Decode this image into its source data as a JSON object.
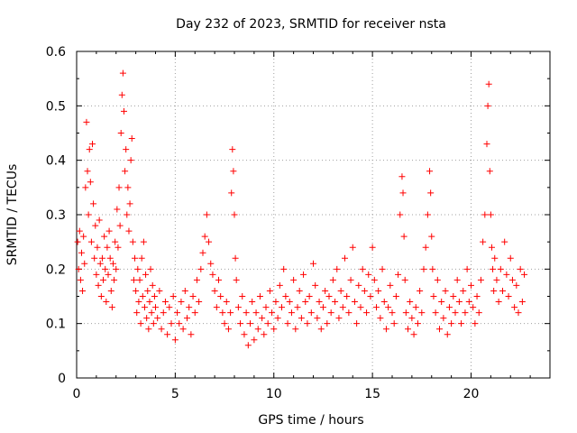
{
  "chart_data": {
    "type": "scatter",
    "title": "Day 232 of 2023, SRMTID for receiver nsta",
    "xlabel": "GPS time / hours",
    "ylabel": "SRMTID / TECUs",
    "xlim": [
      0,
      24
    ],
    "ylim": [
      0,
      0.6
    ],
    "xticks": [
      0,
      5,
      10,
      15,
      20
    ],
    "xtick_labels": [
      "0",
      "5",
      "10",
      "15",
      "20"
    ],
    "yticks": [
      0,
      0.1,
      0.2,
      0.3,
      0.4,
      0.5,
      0.6
    ],
    "ytick_labels": [
      "0",
      "0.1",
      "0.2",
      "0.3",
      "0.4",
      "0.5",
      "0.6"
    ],
    "grid": true,
    "marker": "plus",
    "marker_color": "#ff0000",
    "series": [
      {
        "name": "SRMTID",
        "x": [
          0.05,
          0.1,
          0.15,
          0.2,
          0.25,
          0.3,
          0.35,
          0.4,
          0.45,
          0.5,
          0.55,
          0.6,
          0.65,
          0.7,
          0.75,
          0.8,
          0.85,
          0.9,
          0.95,
          1.0,
          1.05,
          1.1,
          1.15,
          1.2,
          1.25,
          1.3,
          1.35,
          1.4,
          1.45,
          1.5,
          1.55,
          1.6,
          1.65,
          1.7,
          1.75,
          1.8,
          1.85,
          1.9,
          1.95,
          2.0,
          2.05,
          2.1,
          2.15,
          2.2,
          2.25,
          2.3,
          2.35,
          2.4,
          2.45,
          2.5,
          2.55,
          2.6,
          2.65,
          2.7,
          2.75,
          2.8,
          2.85,
          2.9,
          2.95,
          3.0,
          3.05,
          3.1,
          3.15,
          3.2,
          3.25,
          3.3,
          3.35,
          3.4,
          3.45,
          3.5,
          3.55,
          3.6,
          3.65,
          3.7,
          3.75,
          3.8,
          3.85,
          3.9,
          3.95,
          4.0,
          4.1,
          4.2,
          4.3,
          4.4,
          4.5,
          4.6,
          4.7,
          4.8,
          4.9,
          5.0,
          5.1,
          5.2,
          5.3,
          5.4,
          5.5,
          5.6,
          5.7,
          5.8,
          5.9,
          6.0,
          6.1,
          6.2,
          6.3,
          6.4,
          6.5,
          6.6,
          6.7,
          6.8,
          6.9,
          7.0,
          7.1,
          7.2,
          7.3,
          7.4,
          7.5,
          7.6,
          7.7,
          7.8,
          7.85,
          7.9,
          7.95,
          8.0,
          8.05,
          8.1,
          8.2,
          8.3,
          8.4,
          8.5,
          8.6,
          8.7,
          8.8,
          8.9,
          9.0,
          9.1,
          9.2,
          9.3,
          9.4,
          9.5,
          9.6,
          9.7,
          9.8,
          9.9,
          10.0,
          10.1,
          10.2,
          10.3,
          10.4,
          10.5,
          10.6,
          10.7,
          10.8,
          10.9,
          11.0,
          11.1,
          11.2,
          11.3,
          11.4,
          11.5,
          11.6,
          11.7,
          11.8,
          11.9,
          12.0,
          12.1,
          12.2,
          12.3,
          12.4,
          12.5,
          12.6,
          12.7,
          12.8,
          12.9,
          13.0,
          13.1,
          13.2,
          13.3,
          13.4,
          13.5,
          13.6,
          13.7,
          13.8,
          13.9,
          14.0,
          14.1,
          14.2,
          14.3,
          14.4,
          14.5,
          14.6,
          14.7,
          14.8,
          14.9,
          15.0,
          15.1,
          15.2,
          15.3,
          15.4,
          15.5,
          15.6,
          15.7,
          15.8,
          15.9,
          16.0,
          16.1,
          16.2,
          16.3,
          16.4,
          16.5,
          16.55,
          16.6,
          16.65,
          16.7,
          16.8,
          16.9,
          17.0,
          17.1,
          17.2,
          17.3,
          17.4,
          17.5,
          17.6,
          17.7,
          17.8,
          17.9,
          17.95,
          18.0,
          18.05,
          18.1,
          18.2,
          18.3,
          18.4,
          18.5,
          18.6,
          18.7,
          18.8,
          18.9,
          19.0,
          19.1,
          19.2,
          19.3,
          19.4,
          19.5,
          19.6,
          19.7,
          19.8,
          19.9,
          20.0,
          20.1,
          20.2,
          20.3,
          20.4,
          20.5,
          20.6,
          20.7,
          20.8,
          20.85,
          20.9,
          20.95,
          21.0,
          21.05,
          21.1,
          21.15,
          21.2,
          21.3,
          21.4,
          21.5,
          21.6,
          21.7,
          21.8,
          21.9,
          22.0,
          22.1,
          22.2,
          22.3,
          22.4,
          22.5,
          22.6,
          22.7
        ],
        "y": [
          0.25,
          0.2,
          0.27,
          0.18,
          0.23,
          0.16,
          0.26,
          0.21,
          0.35,
          0.47,
          0.38,
          0.3,
          0.42,
          0.36,
          0.25,
          0.43,
          0.32,
          0.22,
          0.28,
          0.19,
          0.24,
          0.17,
          0.29,
          0.21,
          0.15,
          0.22,
          0.18,
          0.26,
          0.2,
          0.14,
          0.24,
          0.19,
          0.27,
          0.22,
          0.16,
          0.13,
          0.21,
          0.18,
          0.25,
          0.2,
          0.31,
          0.24,
          0.35,
          0.28,
          0.45,
          0.52,
          0.56,
          0.49,
          0.38,
          0.42,
          0.3,
          0.35,
          0.27,
          0.32,
          0.4,
          0.44,
          0.25,
          0.18,
          0.22,
          0.16,
          0.12,
          0.2,
          0.14,
          0.18,
          0.1,
          0.22,
          0.15,
          0.25,
          0.13,
          0.19,
          0.11,
          0.16,
          0.09,
          0.14,
          0.2,
          0.12,
          0.17,
          0.1,
          0.15,
          0.13,
          0.11,
          0.16,
          0.09,
          0.12,
          0.14,
          0.08,
          0.13,
          0.1,
          0.15,
          0.07,
          0.12,
          0.1,
          0.14,
          0.09,
          0.16,
          0.11,
          0.13,
          0.08,
          0.15,
          0.12,
          0.18,
          0.14,
          0.2,
          0.23,
          0.26,
          0.3,
          0.25,
          0.21,
          0.19,
          0.16,
          0.13,
          0.18,
          0.15,
          0.12,
          0.1,
          0.14,
          0.09,
          0.12,
          0.34,
          0.42,
          0.38,
          0.3,
          0.22,
          0.18,
          0.13,
          0.1,
          0.15,
          0.08,
          0.12,
          0.06,
          0.1,
          0.14,
          0.07,
          0.12,
          0.09,
          0.15,
          0.11,
          0.08,
          0.13,
          0.1,
          0.16,
          0.12,
          0.09,
          0.14,
          0.11,
          0.17,
          0.13,
          0.2,
          0.15,
          0.1,
          0.14,
          0.12,
          0.18,
          0.09,
          0.13,
          0.16,
          0.11,
          0.19,
          0.14,
          0.1,
          0.15,
          0.12,
          0.21,
          0.17,
          0.11,
          0.14,
          0.09,
          0.13,
          0.16,
          0.1,
          0.15,
          0.12,
          0.18,
          0.14,
          0.2,
          0.11,
          0.16,
          0.13,
          0.22,
          0.15,
          0.12,
          0.18,
          0.24,
          0.14,
          0.1,
          0.17,
          0.13,
          0.2,
          0.16,
          0.12,
          0.19,
          0.15,
          0.24,
          0.18,
          0.13,
          0.16,
          0.11,
          0.2,
          0.14,
          0.09,
          0.13,
          0.17,
          0.12,
          0.1,
          0.15,
          0.19,
          0.3,
          0.37,
          0.34,
          0.26,
          0.18,
          0.12,
          0.09,
          0.14,
          0.11,
          0.08,
          0.13,
          0.1,
          0.16,
          0.12,
          0.2,
          0.24,
          0.3,
          0.38,
          0.34,
          0.26,
          0.2,
          0.15,
          0.12,
          0.18,
          0.09,
          0.14,
          0.11,
          0.16,
          0.08,
          0.13,
          0.1,
          0.15,
          0.12,
          0.18,
          0.14,
          0.1,
          0.16,
          0.12,
          0.2,
          0.14,
          0.17,
          0.13,
          0.1,
          0.15,
          0.12,
          0.18,
          0.25,
          0.3,
          0.43,
          0.5,
          0.54,
          0.38,
          0.3,
          0.24,
          0.2,
          0.16,
          0.22,
          0.18,
          0.14,
          0.2,
          0.16,
          0.25,
          0.19,
          0.15,
          0.22,
          0.18,
          0.13,
          0.17,
          0.12,
          0.2,
          0.14,
          0.19
        ]
      }
    ]
  }
}
